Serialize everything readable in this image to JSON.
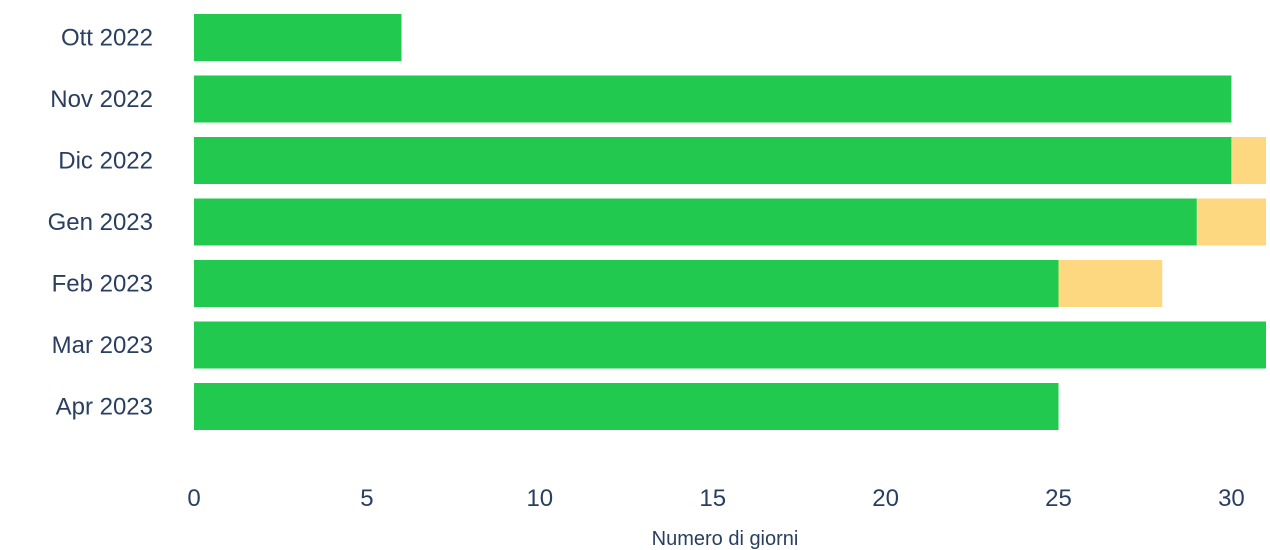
{
  "chart_data": {
    "type": "bar",
    "orientation": "horizontal",
    "barmode": "stack",
    "categories": [
      "Ott 2022",
      "Nov 2022",
      "Dic 2022",
      "Gen 2023",
      "Feb 2023",
      "Mar 2023",
      "Apr 2023"
    ],
    "series": [
      {
        "color": "#22c94f",
        "values": [
          6,
          30,
          30,
          29,
          25,
          31,
          25
        ]
      },
      {
        "color": "#fdd880",
        "values": [
          0,
          0,
          1,
          2,
          3,
          0,
          0
        ]
      }
    ],
    "xlabel": "Numero di giorni",
    "ylabel": "",
    "xlim": [
      0,
      31
    ],
    "xticks": [
      0,
      5,
      10,
      15,
      20,
      25,
      30
    ],
    "grid": false,
    "legend": "none"
  }
}
